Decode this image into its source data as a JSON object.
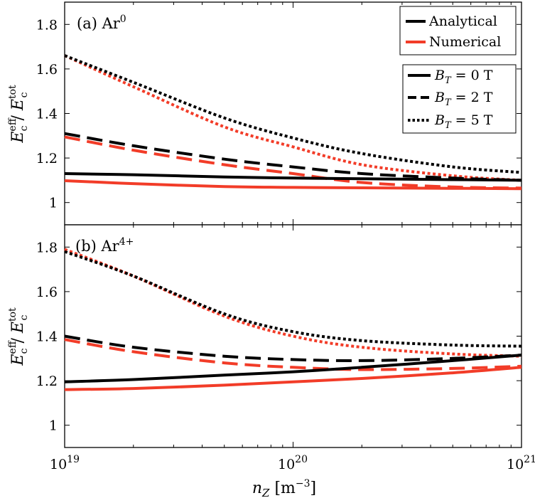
{
  "chart_data": [
    {
      "type": "line",
      "panel": "(a)",
      "title": "(a) Ar⁰",
      "title_prefix": "(a) Ar",
      "title_sup": "0",
      "xscale": "log",
      "xlim": [
        1e+19,
        1e+21
      ],
      "ylim": [
        0.9,
        1.9
      ],
      "yticks": [
        1,
        1.2,
        1.4,
        1.6,
        1.8
      ],
      "ytick_labels": [
        "1",
        "1.2",
        "1.4",
        "1.6",
        "1.8"
      ],
      "ylabel": "Ec^eff / Ec^tot",
      "x": [
        1e+19,
        2e+19,
        5e+19,
        1e+20,
        2e+20,
        5e+20,
        1e+21
      ],
      "series": [
        {
          "name": "Analytical, B_T = 0 T",
          "model": "Analytical",
          "bt": "0",
          "color": "#000000",
          "style": "solid",
          "values": [
            1.13,
            1.125,
            1.115,
            1.11,
            1.107,
            1.103,
            1.1
          ]
        },
        {
          "name": "Numerical, B_T = 0 T",
          "model": "Numerical",
          "bt": "0",
          "color": "#f23c28",
          "style": "solid",
          "values": [
            1.098,
            1.085,
            1.072,
            1.068,
            1.066,
            1.064,
            1.062
          ]
        },
        {
          "name": "Analytical, B_T = 2 T",
          "model": "Analytical",
          "bt": "2",
          "color": "#000000",
          "style": "dashed",
          "values": [
            1.31,
            1.255,
            1.195,
            1.16,
            1.13,
            1.11,
            1.1
          ]
        },
        {
          "name": "Numerical, B_T = 2 T",
          "model": "Numerical",
          "bt": "2",
          "color": "#f23c28",
          "style": "dashed",
          "values": [
            1.295,
            1.235,
            1.17,
            1.13,
            1.09,
            1.07,
            1.065
          ]
        },
        {
          "name": "Analytical, B_T = 5 T",
          "model": "Analytical",
          "bt": "5",
          "color": "#000000",
          "style": "dotted",
          "values": [
            1.66,
            1.54,
            1.38,
            1.29,
            1.22,
            1.16,
            1.135
          ]
        },
        {
          "name": "Numerical, B_T = 5 T",
          "model": "Numerical",
          "bt": "5",
          "color": "#f23c28",
          "style": "dotted",
          "values": [
            1.66,
            1.52,
            1.34,
            1.25,
            1.17,
            1.12,
            1.1
          ]
        }
      ]
    },
    {
      "type": "line",
      "panel": "(b)",
      "title": "(b) Ar⁴⁺",
      "title_prefix": "(b) Ar",
      "title_sup": "4+",
      "xscale": "log",
      "xlim": [
        1e+19,
        1e+21
      ],
      "ylim": [
        0.9,
        1.9
      ],
      "yticks": [
        1,
        1.2,
        1.4,
        1.6,
        1.8
      ],
      "ytick_labels": [
        "1",
        "1.2",
        "1.4",
        "1.6",
        "1.8"
      ],
      "ylabel": "Ec^eff / Ec^tot",
      "xlabel": "n_Z [m^-3]",
      "xtick_labels": [
        {
          "base": "10",
          "exp": "19"
        },
        {
          "base": "10",
          "exp": "20"
        },
        {
          "base": "10",
          "exp": "21"
        }
      ],
      "x": [
        1e+19,
        2e+19,
        5e+19,
        1e+20,
        2e+20,
        5e+20,
        1e+21
      ],
      "series": [
        {
          "name": "Analytical, B_T = 0 T",
          "model": "Analytical",
          "bt": "0",
          "color": "#000000",
          "style": "solid",
          "values": [
            1.195,
            1.205,
            1.225,
            1.24,
            1.26,
            1.29,
            1.315
          ]
        },
        {
          "name": "Numerical, B_T = 0 T",
          "model": "Numerical",
          "bt": "0",
          "color": "#f23c28",
          "style": "solid",
          "values": [
            1.16,
            1.165,
            1.18,
            1.195,
            1.21,
            1.235,
            1.26
          ]
        },
        {
          "name": "Analytical, B_T = 2 T",
          "model": "Analytical",
          "bt": "2",
          "color": "#000000",
          "style": "dashed",
          "values": [
            1.4,
            1.35,
            1.31,
            1.295,
            1.29,
            1.3,
            1.315
          ]
        },
        {
          "name": "Numerical, B_T = 2 T",
          "model": "Numerical",
          "bt": "2",
          "color": "#f23c28",
          "style": "dashed",
          "values": [
            1.385,
            1.33,
            1.28,
            1.26,
            1.25,
            1.255,
            1.265
          ]
        },
        {
          "name": "Analytical, B_T = 5 T",
          "model": "Analytical",
          "bt": "5",
          "color": "#000000",
          "style": "dotted",
          "values": [
            1.78,
            1.67,
            1.5,
            1.42,
            1.38,
            1.36,
            1.355
          ]
        },
        {
          "name": "Numerical, B_T = 5 T",
          "model": "Numerical",
          "bt": "5",
          "color": "#f23c28",
          "style": "dotted",
          "values": [
            1.79,
            1.67,
            1.49,
            1.4,
            1.35,
            1.32,
            1.31
          ]
        }
      ]
    }
  ],
  "legend_model": {
    "placement": "top-right",
    "entries": [
      {
        "label": "Analytical",
        "color": "#000000"
      },
      {
        "label": "Numerical",
        "color": "#f23c28"
      }
    ]
  },
  "legend_field": {
    "placement": "top-right",
    "entries": [
      {
        "var": "B",
        "sub": "T",
        "rest": " = 0 T",
        "style": "solid"
      },
      {
        "var": "B",
        "sub": "T",
        "rest": " = 2 T",
        "style": "dashed"
      },
      {
        "var": "B",
        "sub": "T",
        "rest": " = 5 T",
        "style": "dotted"
      }
    ]
  },
  "labels": {
    "ylabel_var": "E",
    "ylabel_sub": "c",
    "ylabel_sup_num": "eff",
    "ylabel_sup_den": "tot",
    "ylabel_sep": " / ",
    "xlabel_var": "n",
    "xlabel_sub": "Z",
    "xlabel_unit": " [m",
    "xlabel_unit_exp": "−3",
    "xlabel_close": "]"
  }
}
